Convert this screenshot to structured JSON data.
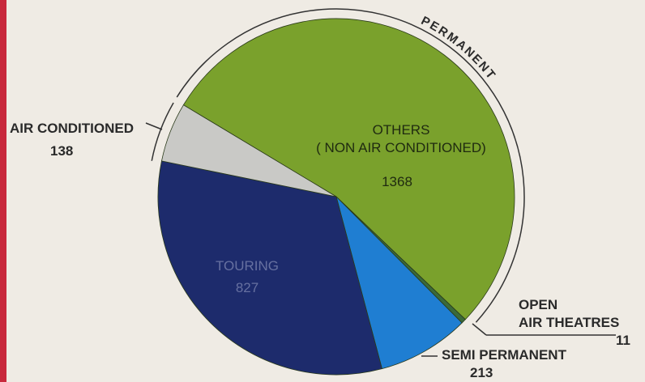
{
  "chart_data": {
    "type": "pie",
    "categories": [
      "OTHERS\n( NON AIR CONDITIONED)",
      "OPEN\nAIR THEATRES",
      "SEMI PERMANENT",
      "TOURING",
      "AIR CONDITIONED"
    ],
    "values": [
      1368,
      11,
      213,
      827,
      138
    ],
    "colors": [
      "#7aa12c",
      "#3a6a3a",
      "#1f7ed2",
      "#1d2b6c",
      "#c9c9c6"
    ],
    "annotations": [
      "PERMANENT"
    ]
  }
}
